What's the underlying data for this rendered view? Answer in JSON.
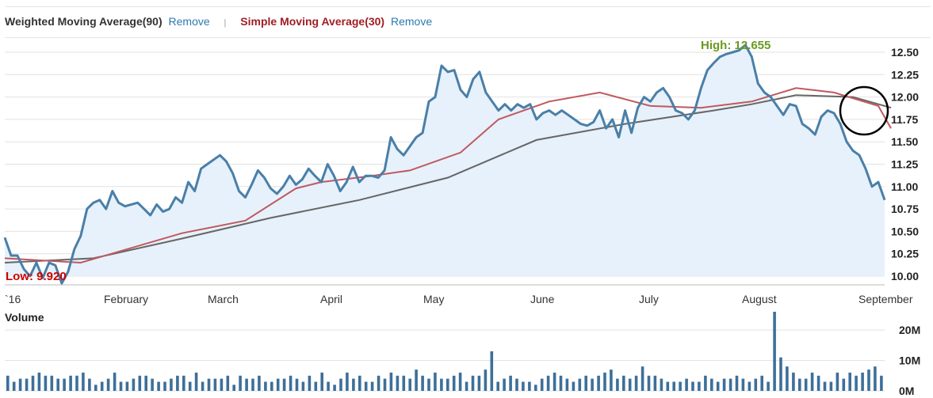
{
  "legend": {
    "wma_label": "Weighted Moving Average(90)",
    "sma_label": "Simple Moving Average(30)",
    "remove_label": "Remove",
    "separator": "|"
  },
  "colors": {
    "price_line": "#4a7fa8",
    "price_fill": "#e6f1fb",
    "wma_line": "#666666",
    "sma_line": "#c0595f",
    "volume_bar": "#3d6f99",
    "grid": "#e2e2e2"
  },
  "chart_data": [
    {
      "type": "line",
      "title": "",
      "ylim": [
        10.0,
        12.5
      ],
      "yticks": [
        "12.50",
        "12.25",
        "12.00",
        "11.75",
        "11.50",
        "11.25",
        "11.00",
        "10.75",
        "10.50",
        "10.25",
        "10.00"
      ],
      "xticks": [
        "`16",
        "February",
        "March",
        "April",
        "May",
        "June",
        "July",
        "August",
        "September"
      ],
      "high_label": "High: 12.655",
      "low_label": "Low: 9.920",
      "grid": true,
      "series": [
        {
          "name": "",
          "values": [
            10.43,
            10.23,
            10.23,
            10.08,
            10.0,
            10.15,
            9.98,
            10.15,
            10.12,
            9.92,
            10.05,
            10.3,
            10.45,
            10.75,
            10.82,
            10.85,
            10.75,
            10.95,
            10.82,
            10.78,
            10.8,
            10.82,
            10.75,
            10.68,
            10.8,
            10.72,
            10.75,
            10.88,
            10.82,
            11.05,
            10.95,
            11.2,
            11.25,
            11.3,
            11.35,
            11.28,
            11.15,
            10.95,
            10.88,
            11.02,
            11.18,
            11.1,
            10.98,
            10.92,
            11.0,
            11.12,
            11.02,
            11.08,
            11.2,
            11.12,
            11.05,
            11.25,
            11.12,
            10.95,
            11.05,
            11.22,
            11.05,
            11.12,
            11.12,
            11.1,
            11.18,
            11.55,
            11.42,
            11.35,
            11.45,
            11.55,
            11.6,
            11.95,
            12.0,
            12.35,
            12.28,
            12.3,
            12.08,
            12.0,
            12.2,
            12.28,
            12.05,
            11.95,
            11.85,
            11.92,
            11.85,
            11.92,
            11.88,
            11.92,
            11.75,
            11.82,
            11.85,
            11.8,
            11.85,
            11.8,
            11.75,
            11.7,
            11.68,
            11.72,
            11.85,
            11.65,
            11.75,
            11.55,
            11.85,
            11.6,
            11.88,
            12.0,
            11.95,
            12.05,
            12.1,
            12.0,
            11.85,
            11.82,
            11.75,
            11.85,
            12.1,
            12.3,
            12.38,
            12.45,
            12.48,
            12.5,
            12.52,
            12.58,
            12.45,
            12.15,
            12.05,
            12.0,
            11.9,
            11.8,
            11.92,
            11.9,
            11.7,
            11.65,
            11.58,
            11.78,
            11.85,
            11.82,
            11.7,
            11.5,
            11.4,
            11.35,
            11.2,
            11.0,
            11.05,
            10.85
          ]
        },
        {
          "name": "Simple Moving Average(30)",
          "x": [
            0,
            12,
            28,
            38,
            46,
            50,
            58,
            64,
            72,
            78,
            86,
            94,
            102,
            110,
            118,
            125,
            131,
            138,
            140
          ],
          "values": [
            10.2,
            10.15,
            10.48,
            10.62,
            10.98,
            11.05,
            11.12,
            11.18,
            11.38,
            11.75,
            11.95,
            12.05,
            11.9,
            11.88,
            11.95,
            12.1,
            12.05,
            11.9,
            11.65
          ]
        },
        {
          "name": "Weighted Moving Average(90)",
          "x": [
            0,
            14,
            28,
            42,
            56,
            70,
            84,
            98,
            112,
            118,
            125,
            134,
            140
          ],
          "values": [
            10.15,
            10.2,
            10.42,
            10.65,
            10.85,
            11.1,
            11.52,
            11.7,
            11.85,
            11.92,
            12.02,
            12.0,
            11.88
          ]
        }
      ]
    },
    {
      "type": "bar",
      "title": "Volume",
      "ylim": [
        0,
        26
      ],
      "yticks": [
        "20M",
        "10M",
        "0M"
      ],
      "values": [
        5,
        3,
        4,
        4,
        5,
        6,
        5,
        5,
        4,
        4,
        5,
        5,
        6,
        4,
        2,
        3,
        4,
        6,
        3,
        3,
        4,
        5,
        5,
        4,
        3,
        3,
        4,
        5,
        5,
        3,
        6,
        3,
        4,
        4,
        4,
        5,
        2,
        5,
        4,
        4,
        5,
        3,
        3,
        4,
        4,
        5,
        4,
        3,
        5,
        3,
        6,
        3,
        2,
        4,
        6,
        4,
        5,
        3,
        3,
        5,
        4,
        6,
        5,
        5,
        4,
        7,
        5,
        4,
        6,
        4,
        4,
        5,
        6,
        3,
        5,
        5,
        7,
        13,
        3,
        4,
        5,
        4,
        3,
        3,
        2,
        4,
        5,
        6,
        5,
        4,
        3,
        4,
        5,
        4,
        5,
        6,
        7,
        4,
        5,
        4,
        5,
        8,
        5,
        5,
        4,
        3,
        3,
        3,
        4,
        3,
        3,
        5,
        4,
        3,
        4,
        4,
        5,
        4,
        3,
        4,
        5,
        3,
        26,
        11,
        8,
        6,
        4,
        4,
        6,
        5,
        3,
        3,
        6,
        4,
        6,
        5,
        6,
        7,
        8,
        5
      ]
    }
  ]
}
